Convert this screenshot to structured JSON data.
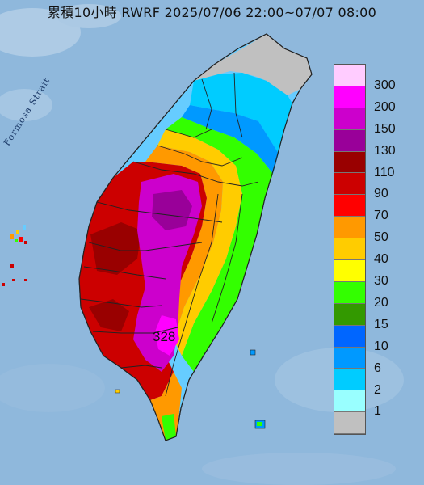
{
  "title": "累積10小時 RWRF 2025/07/06 22:00~07/07 08:00",
  "strait_label": "Formosa Strait",
  "max_value": "328",
  "legend": {
    "levels": [
      {
        "label": "300",
        "color": "#ffccff"
      },
      {
        "label": "200",
        "color": "#ff00ff"
      },
      {
        "label": "150",
        "color": "#cc00cc"
      },
      {
        "label": "130",
        "color": "#990099"
      },
      {
        "label": "110",
        "color": "#990000"
      },
      {
        "label": "90",
        "color": "#cc0000"
      },
      {
        "label": "70",
        "color": "#ff0000"
      },
      {
        "label": "50",
        "color": "#ff9900"
      },
      {
        "label": "40",
        "color": "#ffcc00"
      },
      {
        "label": "30",
        "color": "#ffff00"
      },
      {
        "label": "20",
        "color": "#33ff00"
      },
      {
        "label": "15",
        "color": "#339900"
      },
      {
        "label": "10",
        "color": "#0066ff"
      },
      {
        "label": "6",
        "color": "#0099ff"
      },
      {
        "label": "2",
        "color": "#00ccff"
      },
      {
        "label": "1",
        "color": "#99ffff"
      },
      {
        "label": "",
        "color": "#c0c0c0"
      }
    ]
  },
  "colors": {
    "sea": "#8fb8dc",
    "no_rain": "#c0c0c0",
    "border": "#222222"
  }
}
